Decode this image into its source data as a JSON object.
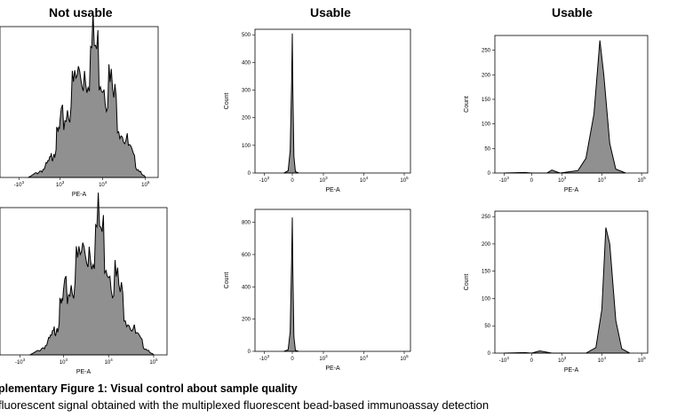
{
  "headers": {
    "col1": "Not usable",
    "col2": "Usable",
    "col3": "Usable"
  },
  "caption": {
    "title": "plementary Figure 1: Visual control about sample quality",
    "text": "fluorescent signal obtained with the multiplexed fluorescent bead-based immunoassay detection"
  },
  "chart_data": [
    {
      "id": "r1c1",
      "type": "area",
      "title": "Not usable",
      "xlabel": "PE-A",
      "ylabel": "",
      "x_ticks": [
        "-10^3",
        "10^3",
        "10^4",
        "10^5"
      ],
      "y_ticks": [],
      "series": [
        {
          "x": [
            1.0,
            1.5,
            2.0,
            2.4,
            2.7,
            3.0,
            3.2,
            3.4,
            3.6,
            3.8,
            4.0,
            4.2,
            4.4,
            4.6,
            4.8,
            5.0
          ],
          "y": [
            0,
            2,
            4,
            8,
            15,
            22,
            33,
            45,
            52,
            60,
            50,
            40,
            26,
            14,
            5,
            0
          ]
        }
      ],
      "color": "#909090"
    },
    {
      "id": "r1c2",
      "type": "area",
      "title": "Usable",
      "xlabel": "PE-A",
      "ylabel": "Count",
      "ylim": [
        0,
        520
      ],
      "x_ticks": [
        "-10^3",
        "0",
        "10^3",
        "10^4",
        "10^5"
      ],
      "y_ticks": [
        "0",
        "100",
        "200",
        "300",
        "400",
        "500"
      ],
      "series": [
        {
          "x": [
            -0.6,
            -0.3,
            -0.15,
            -0.05,
            0.0,
            0.05,
            0.15,
            0.3,
            0.6
          ],
          "y": [
            0,
            8,
            80,
            320,
            505,
            300,
            60,
            5,
            0
          ]
        }
      ],
      "color": "#909090"
    },
    {
      "id": "r1c3",
      "type": "area",
      "title": "Usable",
      "xlabel": "PE-A",
      "ylabel": "Count",
      "ylim": [
        0,
        280
      ],
      "x_ticks": [
        "-10^3",
        "0",
        "10^3",
        "10^4",
        "10^5"
      ],
      "y_ticks": [
        "0",
        "50",
        "100",
        "150",
        "200",
        "250"
      ],
      "series": [
        {
          "x": [
            -2.0,
            -0.5,
            0.0,
            1.5,
            2.0,
            2.5,
            2.8,
            3.4,
            3.6,
            3.8,
            3.95,
            4.05,
            4.2,
            4.35,
            4.6
          ],
          "y": [
            0,
            1,
            0,
            0,
            6,
            2,
            0,
            5,
            30,
            120,
            270,
            200,
            60,
            8,
            0
          ]
        }
      ],
      "color": "#909090"
    },
    {
      "id": "r2c1",
      "type": "area",
      "title": "Not usable",
      "xlabel": "PE-A",
      "ylabel": "",
      "x_ticks": [
        "-10^3",
        "10^3",
        "10^4",
        "10^5"
      ],
      "y_ticks": [],
      "series": [
        {
          "x": [
            1.0,
            1.5,
            2.0,
            2.4,
            2.7,
            3.0,
            3.2,
            3.4,
            3.6,
            3.8,
            4.0,
            4.2,
            4.4,
            4.6,
            4.8,
            5.0
          ],
          "y": [
            0,
            2,
            5,
            10,
            18,
            26,
            36,
            48,
            56,
            62,
            48,
            34,
            20,
            10,
            4,
            0
          ]
        }
      ],
      "color": "#909090"
    },
    {
      "id": "r2c2",
      "type": "area",
      "title": "Usable",
      "xlabel": "PE-A",
      "ylabel": "Count",
      "ylim": [
        0,
        880
      ],
      "x_ticks": [
        "-10^3",
        "0",
        "10^3",
        "10^4",
        "10^5"
      ],
      "y_ticks": [
        "0",
        "200",
        "400",
        "600",
        "800"
      ],
      "series": [
        {
          "x": [
            -0.6,
            -0.3,
            -0.15,
            -0.05,
            0.0,
            0.05,
            0.15,
            0.3,
            0.6
          ],
          "y": [
            0,
            10,
            120,
            550,
            830,
            500,
            90,
            6,
            0
          ]
        }
      ],
      "color": "#909090"
    },
    {
      "id": "r2c3",
      "type": "area",
      "title": "Usable",
      "xlabel": "PE-A",
      "ylabel": "Count",
      "ylim": [
        0,
        260
      ],
      "x_ticks": [
        "-10^3",
        "0",
        "10^3",
        "10^4",
        "10^5"
      ],
      "y_ticks": [
        "0",
        "50",
        "100",
        "150",
        "200",
        "250"
      ],
      "series": [
        {
          "x": [
            -2.0,
            -0.5,
            0.0,
            0.8,
            2.0,
            3.6,
            3.85,
            4.0,
            4.1,
            4.2,
            4.35,
            4.5,
            4.7
          ],
          "y": [
            0,
            1,
            0,
            4,
            0,
            0,
            10,
            80,
            230,
            200,
            60,
            8,
            0
          ]
        }
      ],
      "color": "#909090"
    }
  ]
}
